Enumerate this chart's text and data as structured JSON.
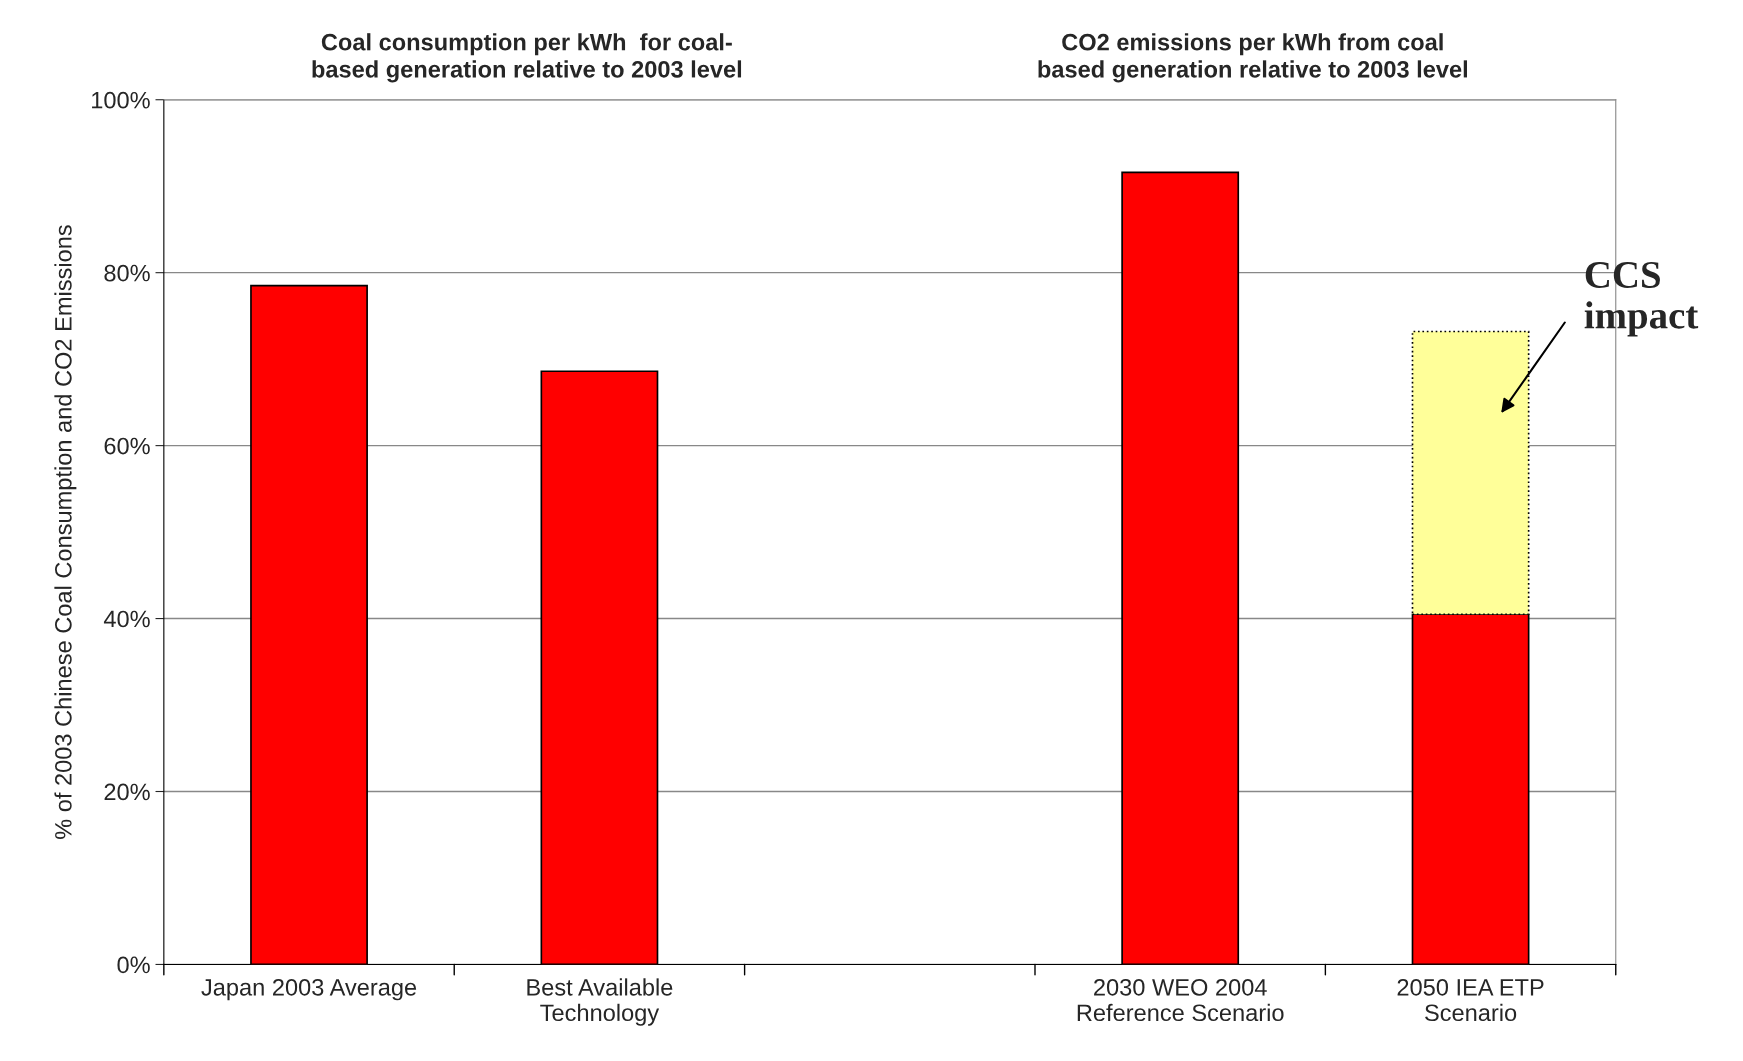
{
  "chart_data": {
    "type": "bar",
    "stacked": true,
    "categories": [
      "Japan 2003 Average",
      "Best Available\nTechnology",
      null,
      "2030 WEO 2004\nReference Scenario",
      "2050 IEA ETP\nScenario"
    ],
    "series": [
      {
        "color": "#ff0000",
        "values": [
          78.5,
          68.6,
          null,
          91.6,
          40.5
        ]
      },
      {
        "color": "#ffff99",
        "values": [
          null,
          null,
          null,
          null,
          32.7
        ],
        "line_style": "dotted"
      }
    ],
    "ylabel": "% of 2003 Chinese Coal Consumption and CO2 Emissions",
    "ylim": [
      0,
      100
    ],
    "yticks": [
      {
        "value": 0,
        "label": "0%"
      },
      {
        "value": 20,
        "label": "20%"
      },
      {
        "value": 40,
        "label": "40%"
      },
      {
        "value": 60,
        "label": "60%"
      },
      {
        "value": 80,
        "label": "80%"
      },
      {
        "value": 100,
        "label": "100%"
      }
    ],
    "grid": "y",
    "annotations": [
      "Coal consumption per kWh  for coal-\nbased generation relative to 2003 level",
      "CO2 emissions per kWh from coal\nbased generation relative to 2003 level",
      "CCS\nimpact"
    ]
  }
}
